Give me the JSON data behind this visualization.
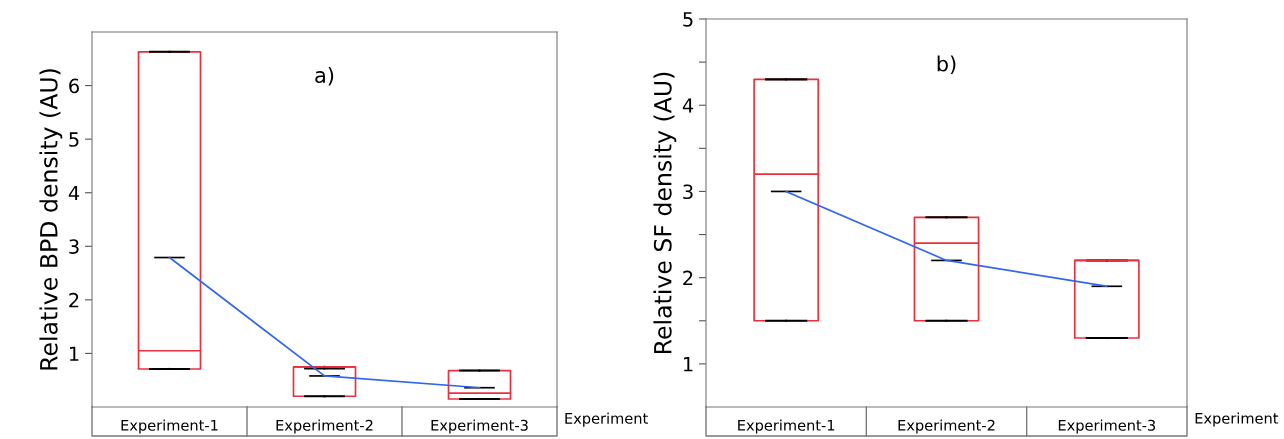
{
  "chart_data": [
    {
      "type": "box",
      "title": "a)",
      "ylabel": "Relative BPD density (AU)",
      "xlabel": "Experiment",
      "categories": [
        "Experiment-1",
        "Experiment-2",
        "Experiment-3"
      ],
      "series": [
        {
          "color": "#e8303f",
          "boxes": [
            {
              "low": 0.71,
              "q1": 0.71,
              "median": 1.05,
              "q3": 6.63,
              "high": 6.63,
              "mean": 2.79
            },
            {
              "low": 0.2,
              "q1": 0.2,
              "median": 0.75,
              "q3": 0.75,
              "high": 0.72,
              "mean": 0.58
            },
            {
              "low": 0.15,
              "q1": 0.15,
              "median": 0.26,
              "q3": 0.68,
              "high": 0.68,
              "mean": 0.36
            }
          ]
        },
        {
          "type": "line",
          "color": "#3366ee",
          "values": [
            2.79,
            0.58,
            0.36
          ]
        }
      ],
      "ylim": [
        0,
        7
      ],
      "yticks": [
        1,
        2,
        3,
        4,
        5,
        6
      ],
      "grid": false,
      "legend": false
    },
    {
      "type": "box",
      "title": "b)",
      "ylabel": "Relative SF density (AU)",
      "xlabel": "Experiment",
      "categories": [
        "Experiment-1",
        "Experiment-2",
        "Experiment-3"
      ],
      "series": [
        {
          "color": "#e8303f",
          "boxes": [
            {
              "low": 1.5,
              "q1": 1.5,
              "median": 3.2,
              "q3": 4.3,
              "high": 4.3,
              "mean": 3.0
            },
            {
              "low": 1.5,
              "q1": 1.5,
              "median": 2.4,
              "q3": 2.7,
              "high": 2.7,
              "mean": 2.2
            },
            {
              "low": 1.3,
              "q1": 1.3,
              "median": 2.2,
              "q3": 2.2,
              "high": 2.2,
              "mean": 1.9
            }
          ]
        },
        {
          "type": "line",
          "color": "#3366ee",
          "values": [
            3.0,
            2.2,
            1.9
          ]
        }
      ],
      "ylim": [
        0.5,
        5
      ],
      "yticks": [
        1,
        {
          "value": 1.5,
          "label": null
        },
        2,
        {
          "value": 2.5,
          "label": null
        },
        3,
        {
          "value": 3.5,
          "label": null
        },
        4,
        {
          "value": 4.5,
          "label": null
        },
        5
      ],
      "grid": false,
      "legend": false
    }
  ]
}
